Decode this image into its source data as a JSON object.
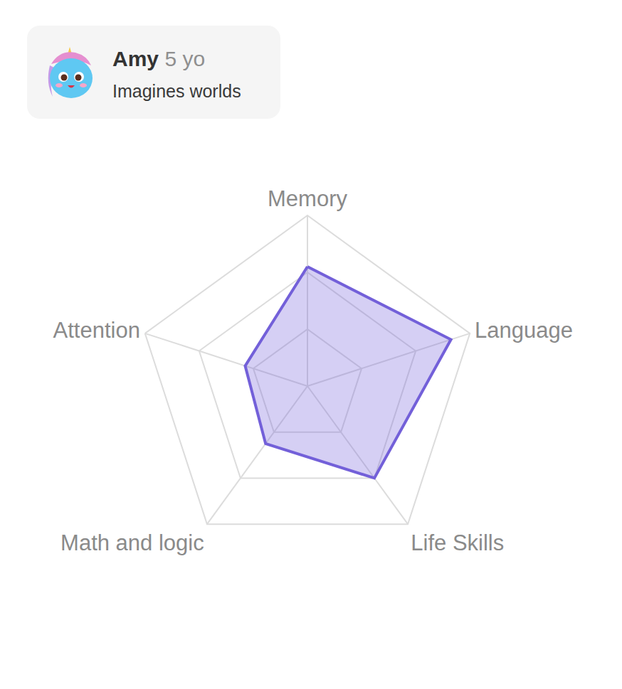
{
  "header": {
    "name": "Amy",
    "age": "5 yo",
    "tagline": "Imagines worlds"
  },
  "chart_data": {
    "type": "radar",
    "categories": [
      "Memory",
      "Language",
      "Life Skills",
      "Math and logic",
      "Attention"
    ],
    "values": [
      2.1,
      2.65,
      2.0,
      1.25,
      1.15
    ],
    "color": "#7360d9",
    "ylim": [
      0,
      3
    ],
    "yticks": [
      1,
      2,
      3
    ],
    "grid": true,
    "tick_labels": "x"
  }
}
